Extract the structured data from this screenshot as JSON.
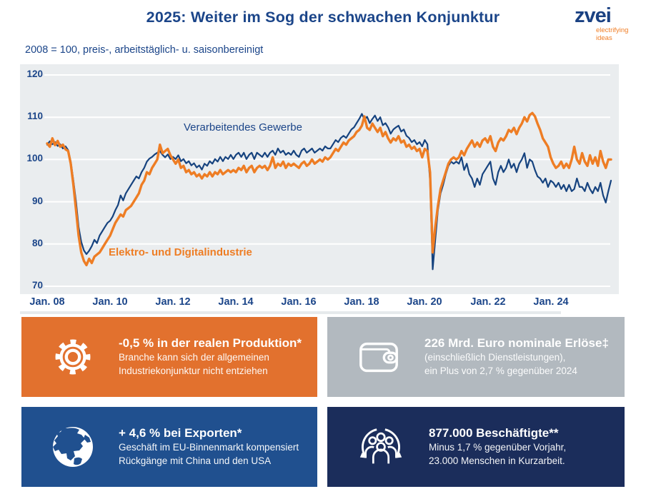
{
  "header": {
    "title": "2025: Weiter im Sog der schwachen Konjunktur",
    "logo": {
      "name": "zvei",
      "tagline_line1": "electrifying",
      "tagline_line2": "ideas"
    }
  },
  "subtitle": "2008 = 100, preis-, arbeitstäglich- u. saisonbereinigt",
  "chart_data": {
    "type": "line",
    "x_start": "Jan 2008",
    "x_end": "Dez 2025",
    "x_interval": "monthly",
    "x_tick_labels": [
      "Jan. 08",
      "Jan. 10",
      "Jan. 12",
      "Jan. 14",
      "Jan. 16",
      "Jan. 18",
      "Jan. 20",
      "Jan. 22",
      "Jan. 24"
    ],
    "y_ticks": [
      120,
      110,
      100,
      90,
      80,
      70
    ],
    "ylim": [
      70,
      120
    ],
    "grid": "horizontal-white",
    "legend": "inline-labels",
    "plot_bg": "#eaedef",
    "series": [
      {
        "name": "Verarbeitendes Gewerbe",
        "color": "#16437f",
        "values": [
          103.5,
          104.3,
          103.6,
          104.1,
          103.2,
          103.6,
          102.6,
          103.1,
          102.2,
          99.5,
          95.0,
          90.0,
          84.0,
          80.5,
          78.5,
          77.6,
          78.4,
          79.5,
          81.0,
          80.2,
          82.0,
          83.0,
          84.0,
          85.0,
          85.5,
          86.5,
          88.0,
          89.2,
          91.5,
          90.3,
          92.0,
          93.0,
          94.0,
          95.0,
          96.0,
          95.5,
          97.0,
          98.0,
          99.5,
          100.2,
          100.6,
          101.2,
          101.6,
          102.0,
          101.1,
          100.5,
          101.2,
          100.1,
          100.6,
          100.1,
          101.0,
          99.6,
          100.1,
          99.1,
          99.6,
          98.6,
          99.1,
          98.1,
          98.6,
          97.6,
          99.0,
          98.5,
          99.6,
          99.0,
          100.1,
          99.5,
          100.6,
          99.6,
          100.6,
          100.1,
          101.1,
          100.1,
          101.1,
          101.6,
          100.6,
          101.6,
          100.1,
          101.1,
          101.6,
          100.1,
          101.6,
          101.1,
          100.6,
          101.6,
          100.6,
          101.6,
          102.1,
          101.1,
          102.6,
          101.6,
          102.1,
          101.1,
          101.6,
          101.1,
          102.1,
          101.1,
          100.6,
          102.1,
          102.6,
          101.6,
          102.1,
          102.6,
          101.6,
          102.1,
          102.6,
          102.1,
          103.1,
          102.6,
          102.6,
          103.6,
          104.6,
          104.1,
          105.1,
          105.6,
          105.1,
          106.1,
          107.1,
          107.6,
          108.6,
          109.6,
          110.8,
          109.5,
          110.1,
          108.6,
          109.6,
          110.4,
          109.1,
          110.0,
          108.1,
          108.6,
          107.6,
          106.1,
          107.1,
          107.6,
          108.0,
          106.6,
          107.1,
          105.6,
          105.1,
          104.1,
          104.6,
          103.6,
          104.1,
          103.1,
          104.6,
          103.6,
          95.0,
          74.0,
          81.0,
          88.0,
          92.0,
          94.0,
          96.5,
          98.5,
          99.5,
          99.0,
          99.5,
          99.0,
          100.5,
          97.5,
          99.0,
          96.5,
          95.5,
          93.5,
          95.5,
          94.0,
          96.5,
          97.5,
          98.5,
          99.5,
          95.5,
          94.0,
          97.0,
          98.5,
          97.0,
          98.0,
          100.0,
          98.0,
          99.0,
          97.0,
          99.0,
          100.0,
          101.5,
          98.0,
          100.0,
          99.5,
          97.5,
          96.0,
          95.5,
          94.5,
          95.5,
          93.5,
          95.0,
          94.5,
          93.5,
          94.5,
          93.0,
          94.0,
          92.5,
          94.0,
          92.5,
          93.0,
          95.5,
          93.5,
          93.5,
          92.5,
          94.5,
          93.0,
          92.0,
          93.5,
          92.5,
          94.5,
          91.5,
          89.8,
          92.5,
          95.0
        ]
      },
      {
        "name": "Elektro- und Digitalindustrie",
        "color": "#ee7d24",
        "values": [
          103.8,
          103.0,
          105.0,
          103.4,
          104.4,
          103.0,
          103.5,
          102.4,
          102.0,
          99.0,
          94.0,
          88.0,
          82.0,
          78.0,
          76.0,
          75.0,
          76.5,
          75.5,
          77.0,
          77.5,
          78.0,
          79.0,
          80.0,
          81.0,
          82.0,
          83.5,
          85.0,
          86.0,
          87.0,
          86.5,
          88.0,
          88.5,
          89.0,
          90.0,
          91.0,
          92.0,
          94.0,
          95.0,
          97.0,
          96.5,
          98.0,
          99.0,
          100.0,
          103.5,
          101.5,
          102.0,
          102.5,
          101.0,
          100.0,
          99.0,
          100.0,
          98.0,
          98.5,
          97.0,
          97.5,
          96.5,
          97.0,
          96.0,
          96.5,
          95.5,
          96.5,
          96.0,
          97.0,
          96.0,
          97.0,
          96.5,
          97.5,
          96.5,
          97.0,
          97.5,
          97.0,
          97.5,
          97.0,
          98.0,
          97.5,
          98.5,
          97.0,
          98.0,
          98.5,
          97.0,
          98.0,
          98.5,
          98.0,
          98.5,
          97.5,
          98.5,
          100.5,
          98.0,
          99.0,
          98.5,
          99.5,
          98.0,
          99.0,
          98.5,
          99.0,
          98.5,
          98.0,
          99.0,
          99.5,
          98.5,
          99.0,
          100.0,
          99.0,
          99.5,
          100.0,
          99.5,
          100.5,
          100.0,
          100.5,
          101.5,
          102.5,
          102.0,
          103.0,
          104.0,
          103.5,
          104.5,
          105.0,
          105.5,
          106.5,
          107.0,
          108.0,
          110.2,
          107.5,
          107.0,
          108.5,
          107.5,
          106.5,
          107.5,
          105.5,
          106.5,
          105.0,
          104.0,
          105.0,
          104.5,
          105.5,
          104.0,
          104.5,
          103.0,
          103.5,
          102.5,
          103.0,
          102.0,
          102.5,
          100.5,
          102.5,
          102.0,
          97.0,
          78.0,
          84.0,
          89.0,
          93.0,
          95.0,
          97.0,
          99.0,
          100.0,
          100.5,
          100.0,
          100.5,
          102.0,
          101.0,
          102.5,
          103.5,
          104.5,
          103.0,
          104.0,
          103.0,
          104.5,
          105.0,
          104.0,
          105.5,
          103.0,
          102.0,
          104.0,
          105.0,
          104.5,
          105.5,
          107.0,
          106.5,
          107.5,
          106.0,
          107.5,
          108.5,
          110.0,
          109.0,
          110.5,
          111.0,
          110.2,
          108.5,
          107.0,
          105.0,
          104.0,
          103.0,
          100.5,
          99.0,
          98.0,
          98.5,
          99.5,
          98.0,
          99.0,
          98.0,
          100.0,
          103.0,
          100.0,
          99.0,
          101.5,
          99.5,
          98.5,
          101.0,
          99.0,
          100.5,
          98.5,
          102.0,
          99.5,
          98.0,
          100.0,
          100.0
        ]
      }
    ]
  },
  "cards": [
    {
      "icon": "gear-icon",
      "bg": "#e2712e",
      "title": "-0,5 % in der realen Produktion*",
      "line1": "Branche kann sich der allgemeinen",
      "line2": "Industriekonjunktur nicht entziehen"
    },
    {
      "icon": "wallet-icon",
      "bg": "#b2b9bf",
      "title": "226 Mrd. Euro nominale Erlöse‡",
      "line1": "(einschließlich Dienstleistungen),",
      "line2": "ein Plus von 2,7 % gegenüber 2024"
    },
    {
      "icon": "globe-icon",
      "bg": "#20508f",
      "title": "+ 4,6 % bei Exporten*",
      "line1": "Geschäft im EU-Binnenmarkt kompensiert",
      "line2": "Rückgänge mit China und den USA"
    },
    {
      "icon": "people-icon",
      "bg": "#1b2d5b",
      "title": "877.000 Beschäftigte**",
      "line1": "Minus 1,7 % gegenüber Vorjahr,",
      "line2": "23.000 Menschen in Kurzarbeit."
    }
  ]
}
